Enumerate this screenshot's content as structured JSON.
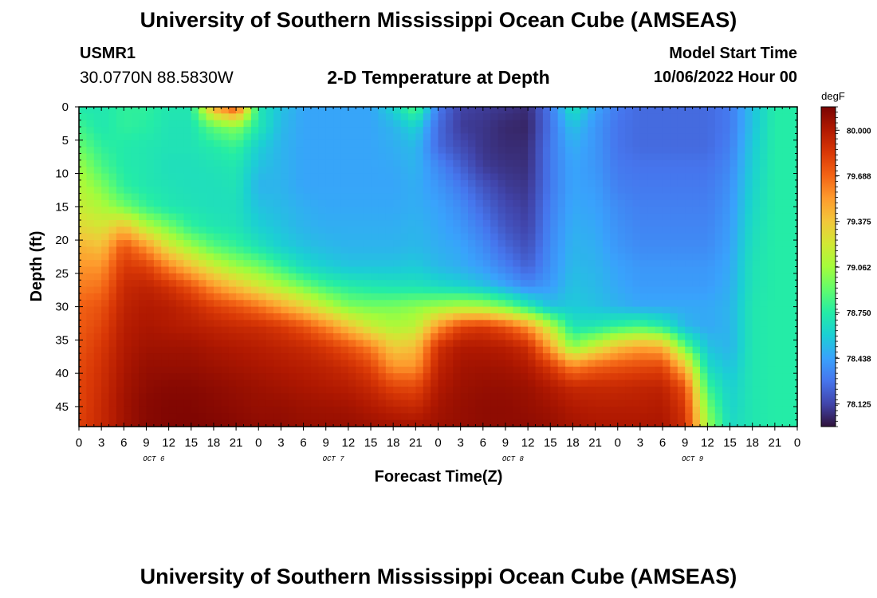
{
  "header": {
    "title": "University of Southern Mississippi Ocean Cube (AMSEAS)",
    "station_id": "USMR1",
    "coordinates": "30.0770N  88.5830W",
    "plot_title": "2-D Temperature at Depth",
    "start_label": "Model Start Time",
    "start_value": "10/06/2022 Hour 00"
  },
  "footer": {
    "title": "University of Southern Mississippi Ocean Cube (AMSEAS)"
  },
  "chart_data": {
    "type": "heatmap",
    "title": "2-D Temperature at Depth",
    "xlabel": "Forecast Time(Z)",
    "ylabel": "Depth (ft)",
    "x_tick_labels": [
      "0",
      "3",
      "6",
      "9",
      "12",
      "15",
      "18",
      "21",
      "0",
      "3",
      "6",
      "9",
      "12",
      "15",
      "18",
      "21",
      "0",
      "3",
      "6",
      "9",
      "12",
      "15",
      "18",
      "21",
      "0",
      "3",
      "6",
      "9",
      "12",
      "15",
      "18",
      "21",
      "0"
    ],
    "day_labels": [
      "OCT 6",
      "OCT 7",
      "OCT 8",
      "OCT 9"
    ],
    "y_ticks": [
      0,
      5,
      10,
      15,
      20,
      25,
      30,
      35,
      40,
      45
    ],
    "y_range": [
      0,
      48
    ],
    "x_range_hours": [
      0,
      96
    ],
    "colorbar": {
      "unit": "degF",
      "min": 77.97,
      "max": 80.16,
      "ticks": [
        "80.000",
        "79.688",
        "79.375",
        "79.062",
        "78.750",
        "78.438",
        "78.125"
      ],
      "colormap": [
        "#30123b",
        "#4145ab",
        "#4675ed",
        "#39a2fc",
        "#1bcfd4",
        "#24eca6",
        "#61fc6c",
        "#a4fc3b",
        "#d1e834",
        "#f3c63a",
        "#fe9b2d",
        "#f36315",
        "#d93806",
        "#b11901",
        "#7a0402"
      ]
    },
    "z_description": "temperature in degF",
    "depth_grid_ft": [
      0,
      3,
      6,
      9,
      12,
      15,
      18,
      21,
      24,
      27,
      30,
      33,
      36,
      39,
      42,
      45,
      48
    ],
    "time_grid_hours": [
      0,
      3,
      6,
      9,
      12,
      15,
      18,
      21,
      24,
      27,
      30,
      33,
      36,
      39,
      42,
      45,
      48,
      51,
      54,
      57,
      60,
      63,
      66,
      69,
      72,
      75,
      78,
      81,
      84,
      87,
      90,
      93,
      96
    ],
    "values": [
      [
        78.72,
        78.72,
        78.78,
        78.78,
        78.72,
        78.72,
        79.5,
        79.8,
        78.72,
        78.55,
        78.45,
        78.45,
        78.45,
        78.45,
        78.62,
        78.88,
        78.3,
        78.12,
        78.1,
        78.08,
        78.05,
        78.3,
        78.7,
        78.45,
        78.3,
        78.25,
        78.25,
        78.25,
        78.25,
        78.3,
        78.55,
        78.75,
        78.75
      ],
      [
        78.82,
        78.72,
        78.78,
        78.76,
        78.7,
        78.7,
        78.9,
        79.0,
        78.72,
        78.52,
        78.45,
        78.45,
        78.45,
        78.45,
        78.5,
        78.62,
        78.25,
        78.1,
        78.08,
        78.04,
        78.03,
        78.28,
        78.55,
        78.4,
        78.28,
        78.25,
        78.25,
        78.25,
        78.25,
        78.3,
        78.55,
        78.75,
        78.75
      ],
      [
        78.92,
        78.78,
        78.74,
        78.72,
        78.7,
        78.7,
        78.74,
        78.8,
        78.6,
        78.5,
        78.45,
        78.45,
        78.45,
        78.45,
        78.48,
        78.52,
        78.25,
        78.15,
        78.08,
        78.05,
        78.05,
        78.3,
        78.48,
        78.4,
        78.28,
        78.25,
        78.25,
        78.25,
        78.25,
        78.32,
        78.58,
        78.75,
        78.75
      ],
      [
        79.05,
        78.85,
        78.74,
        78.72,
        78.68,
        78.68,
        78.7,
        78.72,
        78.55,
        78.5,
        78.45,
        78.45,
        78.45,
        78.45,
        78.46,
        78.5,
        78.35,
        78.22,
        78.1,
        78.07,
        78.06,
        78.3,
        78.45,
        78.4,
        78.3,
        78.28,
        78.28,
        78.28,
        78.28,
        78.35,
        78.6,
        78.75,
        78.75
      ],
      [
        79.12,
        78.98,
        78.78,
        78.72,
        78.7,
        78.68,
        78.68,
        78.7,
        78.5,
        78.5,
        78.45,
        78.45,
        78.45,
        78.45,
        78.45,
        78.48,
        78.4,
        78.3,
        78.18,
        78.1,
        78.08,
        78.3,
        78.45,
        78.42,
        78.32,
        78.3,
        78.3,
        78.3,
        78.3,
        78.38,
        78.62,
        78.75,
        78.75
      ],
      [
        79.18,
        79.1,
        78.95,
        78.8,
        78.72,
        78.7,
        78.68,
        78.68,
        78.55,
        78.52,
        78.48,
        78.46,
        78.46,
        78.46,
        78.46,
        78.48,
        78.44,
        78.36,
        78.24,
        78.14,
        78.1,
        78.32,
        78.46,
        78.44,
        78.36,
        78.32,
        78.32,
        78.32,
        78.32,
        78.4,
        78.64,
        78.75,
        78.75
      ],
      [
        79.3,
        79.24,
        79.4,
        79.12,
        78.95,
        78.78,
        78.72,
        78.7,
        78.6,
        78.55,
        78.5,
        78.48,
        78.48,
        78.48,
        78.48,
        78.5,
        78.46,
        78.4,
        78.3,
        78.18,
        78.12,
        78.34,
        78.48,
        78.46,
        78.38,
        78.34,
        78.34,
        78.34,
        78.34,
        78.42,
        78.66,
        78.75,
        78.75
      ],
      [
        79.45,
        79.4,
        79.75,
        79.55,
        79.25,
        79.05,
        78.88,
        78.8,
        78.7,
        78.6,
        78.55,
        78.52,
        78.5,
        78.5,
        78.5,
        78.52,
        78.48,
        78.45,
        78.36,
        78.24,
        78.16,
        78.36,
        78.5,
        78.48,
        78.4,
        78.36,
        78.36,
        78.36,
        78.36,
        78.44,
        78.68,
        78.75,
        78.75
      ],
      [
        79.55,
        79.55,
        79.85,
        79.82,
        79.6,
        79.4,
        79.2,
        79.05,
        78.95,
        78.8,
        78.66,
        78.6,
        78.56,
        78.56,
        78.56,
        78.58,
        78.52,
        78.48,
        78.42,
        78.32,
        78.22,
        78.38,
        78.52,
        78.5,
        78.44,
        78.4,
        78.4,
        78.4,
        78.4,
        78.46,
        78.7,
        78.75,
        78.75
      ],
      [
        79.62,
        79.65,
        79.92,
        79.95,
        79.88,
        79.75,
        79.55,
        79.4,
        79.25,
        79.1,
        78.95,
        78.82,
        78.75,
        78.72,
        78.7,
        78.7,
        78.66,
        78.62,
        78.56,
        78.46,
        78.36,
        78.42,
        78.55,
        78.52,
        78.46,
        78.42,
        78.42,
        78.42,
        78.42,
        78.48,
        78.7,
        78.75,
        78.75
      ],
      [
        79.7,
        79.75,
        79.95,
        80.0,
        79.98,
        79.92,
        79.82,
        79.75,
        79.65,
        79.5,
        79.35,
        79.15,
        78.98,
        78.95,
        78.96,
        79.0,
        79.05,
        79.1,
        79.08,
        78.95,
        78.75,
        78.55,
        78.58,
        78.55,
        78.5,
        78.46,
        78.46,
        78.46,
        78.46,
        78.5,
        78.72,
        78.75,
        78.75
      ],
      [
        79.72,
        79.8,
        79.98,
        80.02,
        80.0,
        79.98,
        79.95,
        79.92,
        79.9,
        79.85,
        79.75,
        79.6,
        79.4,
        79.2,
        79.1,
        79.15,
        79.55,
        79.8,
        79.85,
        79.75,
        79.55,
        79.15,
        78.7,
        78.72,
        78.8,
        78.85,
        78.75,
        78.52,
        78.46,
        78.5,
        78.72,
        78.75,
        78.75
      ],
      [
        79.75,
        79.85,
        80.0,
        80.05,
        80.05,
        80.05,
        80.02,
        80.0,
        79.98,
        79.95,
        79.92,
        79.85,
        79.75,
        79.6,
        79.35,
        79.4,
        79.88,
        80.0,
        80.0,
        79.98,
        79.9,
        79.5,
        79.0,
        79.2,
        79.4,
        79.5,
        79.45,
        78.9,
        78.55,
        78.5,
        78.72,
        78.75,
        78.75
      ],
      [
        79.78,
        79.88,
        80.02,
        80.08,
        80.08,
        80.08,
        80.06,
        80.04,
        80.02,
        80.0,
        79.98,
        79.95,
        79.9,
        79.8,
        79.55,
        79.55,
        79.95,
        80.04,
        80.05,
        80.04,
        80.0,
        79.85,
        79.6,
        79.7,
        79.75,
        79.78,
        79.8,
        79.4,
        78.65,
        78.55,
        78.72,
        78.75,
        78.75
      ],
      [
        79.8,
        79.9,
        80.04,
        80.1,
        80.12,
        80.12,
        80.1,
        80.08,
        80.06,
        80.04,
        80.02,
        80.0,
        79.98,
        79.92,
        79.8,
        79.78,
        80.0,
        80.06,
        80.08,
        80.08,
        80.06,
        80.0,
        79.92,
        79.92,
        79.92,
        79.94,
        79.95,
        79.75,
        78.8,
        78.6,
        78.72,
        78.75,
        78.75
      ],
      [
        79.8,
        79.92,
        80.05,
        80.12,
        80.14,
        80.14,
        80.12,
        80.1,
        80.08,
        80.08,
        80.06,
        80.05,
        80.04,
        80.0,
        79.95,
        79.92,
        80.04,
        80.08,
        80.1,
        80.1,
        80.08,
        80.05,
        80.0,
        79.98,
        79.98,
        79.98,
        80.0,
        79.85,
        78.95,
        78.62,
        78.72,
        78.75,
        78.75
      ],
      [
        79.82,
        79.92,
        80.05,
        80.12,
        80.14,
        80.15,
        80.14,
        80.12,
        80.1,
        80.1,
        80.08,
        80.08,
        80.08,
        80.06,
        80.05,
        80.04,
        80.06,
        80.08,
        80.1,
        80.1,
        80.1,
        80.08,
        80.04,
        80.02,
        80.02,
        80.02,
        80.02,
        79.9,
        79.05,
        78.65,
        78.72,
        78.75,
        78.75
      ]
    ]
  }
}
